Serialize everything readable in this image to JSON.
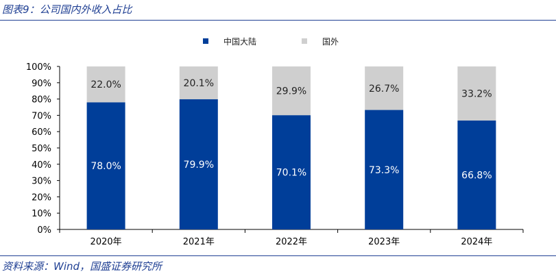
{
  "figure": {
    "title": "图表9：公司国内外收入占比",
    "source": "资料来源：Wind，国盛证券研究所"
  },
  "colors": {
    "domestic": "#003e99",
    "overseas": "#cfcfcf",
    "header_text": "#1f3f93"
  },
  "chart_data": {
    "type": "bar",
    "stacked": true,
    "percent": true,
    "title": "公司国内外收入占比",
    "xlabel": "",
    "ylabel": "",
    "ylim": [
      0,
      100
    ],
    "yticks": [
      "0%",
      "10%",
      "20%",
      "30%",
      "40%",
      "50%",
      "60%",
      "70%",
      "80%",
      "90%",
      "100%"
    ],
    "categories": [
      "2020年",
      "2021年",
      "2022年",
      "2023年",
      "2024年"
    ],
    "legend_position": "top-center",
    "series": [
      {
        "name": "中国大陆",
        "values": [
          78.0,
          79.9,
          70.1,
          73.3,
          66.8
        ],
        "labels": [
          "78.0%",
          "79.9%",
          "70.1%",
          "73.3%",
          "66.8%"
        ]
      },
      {
        "name": "国外",
        "values": [
          22.0,
          20.1,
          29.9,
          26.7,
          33.2
        ],
        "labels": [
          "22.0%",
          "20.1%",
          "29.9%",
          "26.7%",
          "33.2%"
        ]
      }
    ]
  }
}
